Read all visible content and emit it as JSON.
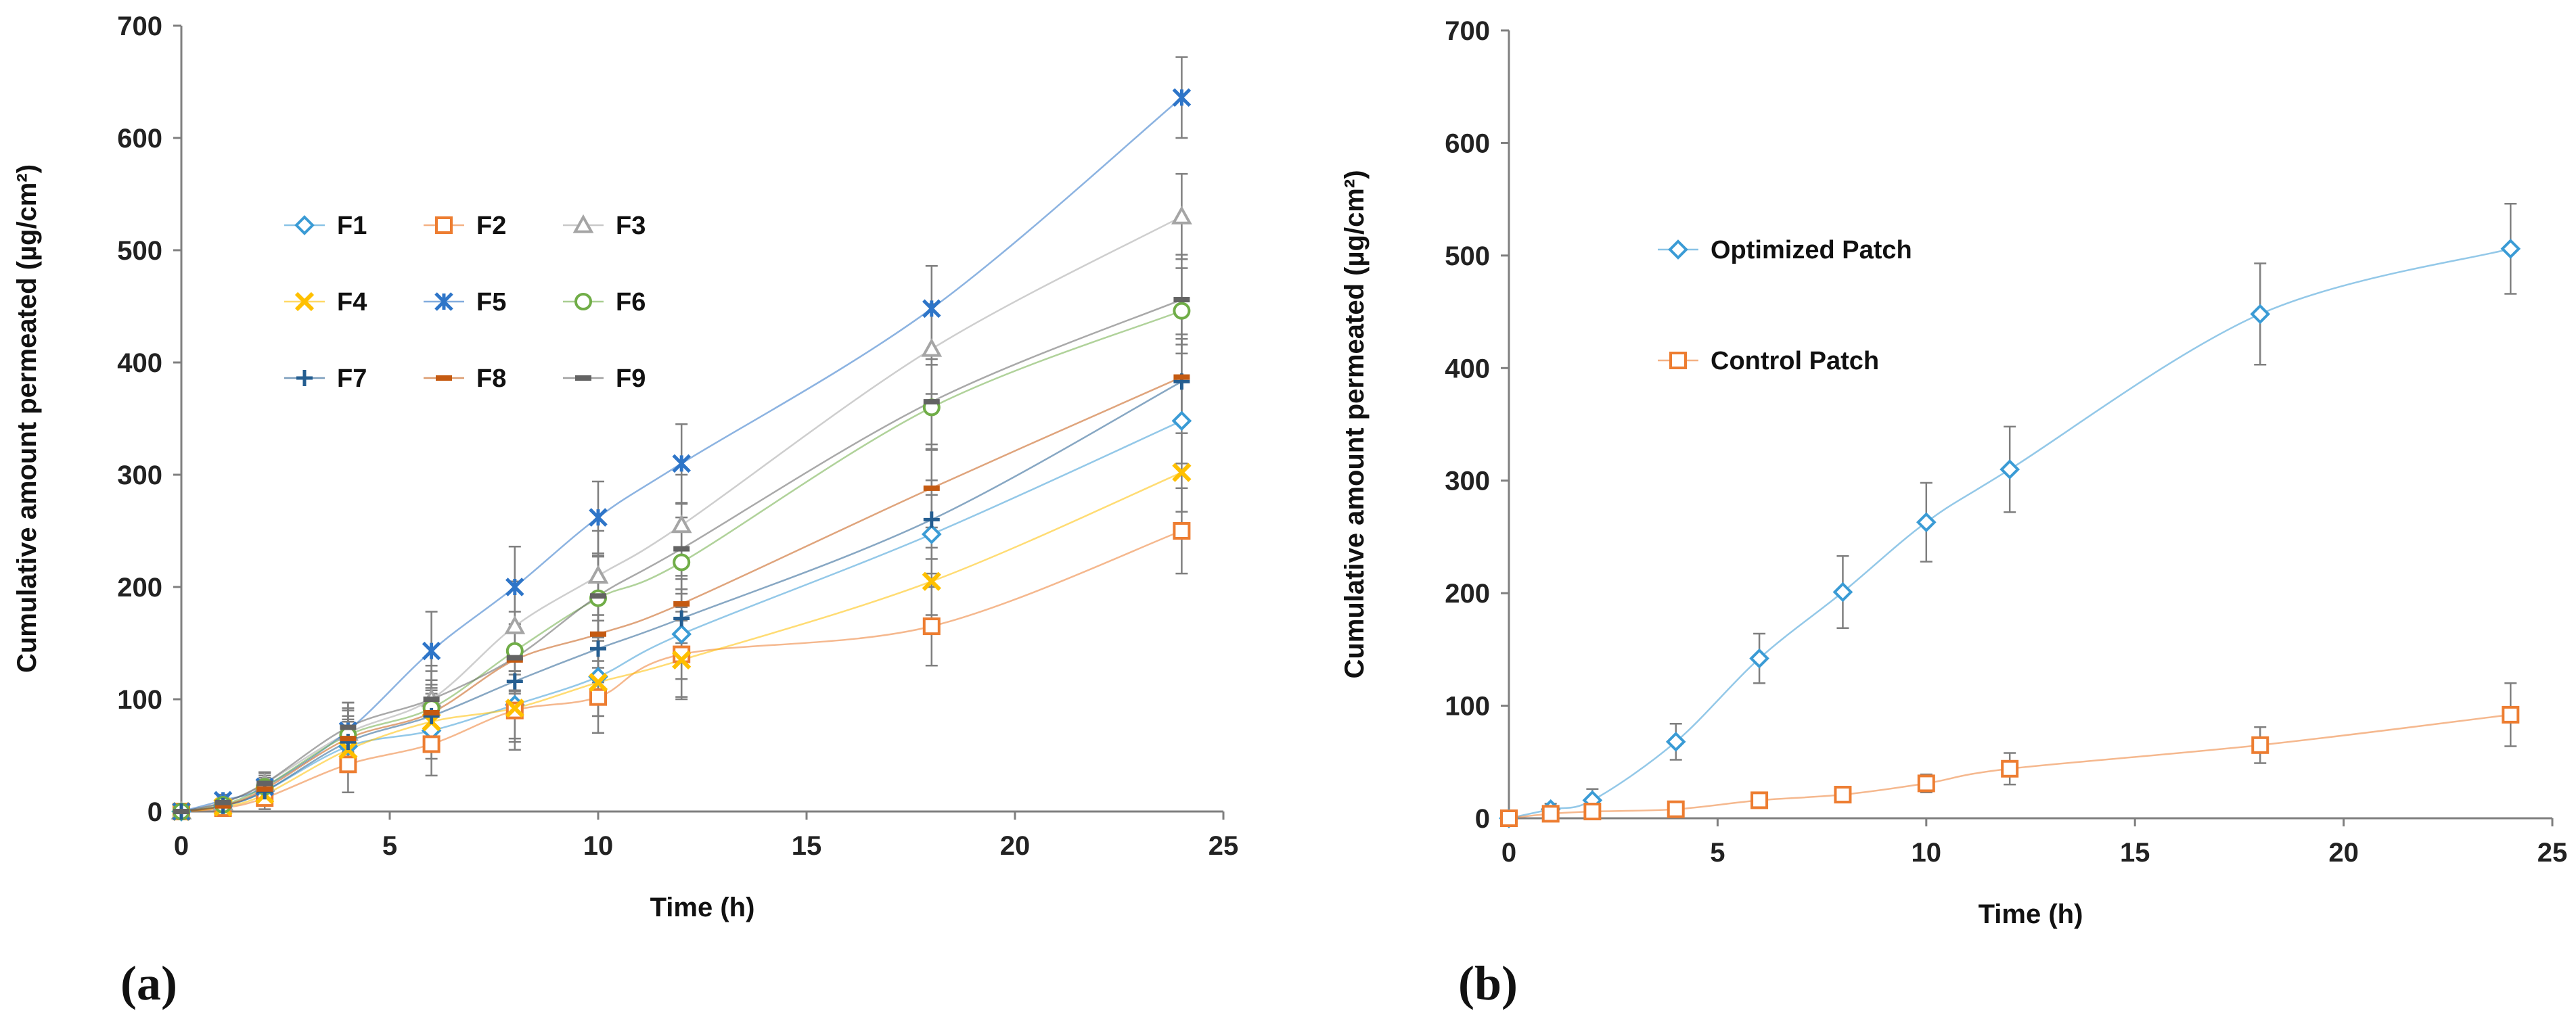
{
  "chart_data": [
    {
      "type": "line",
      "panel_label": "(a)",
      "xlabel": "Time (h)",
      "ylabel": "Cumulative amount permeated (µg/cm²)",
      "xlim": [
        0,
        25
      ],
      "ylim": [
        0,
        700
      ],
      "xticks": [
        0,
        5,
        10,
        15,
        20,
        25
      ],
      "yticks": [
        0,
        100,
        200,
        300,
        400,
        500,
        600,
        700
      ],
      "x": [
        0,
        1,
        2,
        4,
        6,
        8,
        10,
        12,
        18,
        24
      ],
      "series": [
        {
          "name": "F1",
          "color": "#3a9bd5",
          "marker": "diamond",
          "values": [
            0,
            5,
            18,
            58,
            72,
            95,
            120,
            158,
            247,
            348
          ],
          "errors": [
            0,
            5,
            10,
            22,
            25,
            30,
            35,
            40,
            35,
            38
          ]
        },
        {
          "name": "F2",
          "color": "#ed7d31",
          "marker": "square",
          "values": [
            0,
            3,
            12,
            42,
            60,
            90,
            102,
            140,
            165,
            250
          ],
          "errors": [
            0,
            5,
            10,
            25,
            28,
            35,
            32,
            38,
            35,
            38
          ]
        },
        {
          "name": "F3",
          "color": "#a5a5a5",
          "marker": "triangle",
          "values": [
            0,
            8,
            25,
            70,
            100,
            165,
            210,
            255,
            412,
            530
          ],
          "errors": [
            0,
            5,
            10,
            22,
            30,
            40,
            40,
            45,
            40,
            38
          ]
        },
        {
          "name": "F4",
          "color": "#ffc000",
          "marker": "x",
          "values": [
            0,
            4,
            15,
            55,
            80,
            92,
            115,
            135,
            205,
            302
          ],
          "errors": [
            0,
            5,
            10,
            20,
            25,
            30,
            30,
            35,
            30,
            35
          ]
        },
        {
          "name": "F5",
          "color": "#2e75c8",
          "marker": "star",
          "values": [
            0,
            10,
            22,
            72,
            143,
            200,
            262,
            310,
            448,
            636
          ],
          "errors": [
            0,
            5,
            12,
            25,
            35,
            36,
            32,
            35,
            38,
            36
          ]
        },
        {
          "name": "F6",
          "color": "#70ad47",
          "marker": "circle",
          "values": [
            0,
            6,
            22,
            68,
            92,
            143,
            190,
            222,
            360,
            446
          ],
          "errors": [
            0,
            5,
            10,
            22,
            25,
            35,
            38,
            40,
            38,
            38
          ]
        },
        {
          "name": "F7",
          "color": "#255e91",
          "marker": "plus",
          "values": [
            0,
            5,
            18,
            62,
            85,
            116,
            145,
            172,
            260,
            383
          ],
          "errors": [
            0,
            5,
            10,
            20,
            25,
            30,
            30,
            35,
            35,
            38
          ]
        },
        {
          "name": "F8",
          "color": "#c55a11",
          "marker": "dash",
          "values": [
            0,
            5,
            20,
            65,
            88,
            135,
            158,
            185,
            288,
            387
          ],
          "errors": [
            0,
            5,
            10,
            20,
            25,
            30,
            30,
            35,
            35,
            38
          ]
        },
        {
          "name": "F9",
          "color": "#636363",
          "marker": "dash",
          "values": [
            0,
            8,
            25,
            75,
            100,
            137,
            192,
            234,
            365,
            456
          ],
          "errors": [
            0,
            5,
            10,
            22,
            25,
            30,
            35,
            40,
            38,
            40
          ]
        }
      ],
      "legend": "upper-left, 3 columns"
    },
    {
      "type": "line",
      "panel_label": "(b)",
      "xlabel": "Time (h)",
      "ylabel": "Cumulative amount permeated (µg/cm²)",
      "xlim": [
        0,
        25
      ],
      "ylim": [
        0,
        700
      ],
      "xticks": [
        0,
        5,
        10,
        15,
        20,
        25
      ],
      "yticks": [
        0,
        100,
        200,
        300,
        400,
        500,
        600,
        700
      ],
      "x": [
        0,
        1,
        2,
        4,
        6,
        8,
        10,
        12,
        18,
        24
      ],
      "series": [
        {
          "name": "Optimized Patch",
          "color": "#3a9bd5",
          "marker": "diamond",
          "values": [
            0,
            8,
            16,
            68,
            142,
            201,
            263,
            310,
            448,
            506
          ],
          "errors": [
            0,
            5,
            10,
            16,
            22,
            32,
            35,
            38,
            45,
            40
          ]
        },
        {
          "name": "Control Patch",
          "color": "#ed7d31",
          "marker": "square",
          "values": [
            0,
            4,
            6,
            8,
            16,
            21,
            31,
            44,
            65,
            92
          ],
          "errors": [
            0,
            3,
            4,
            5,
            6,
            6,
            8,
            14,
            16,
            28
          ]
        }
      ],
      "legend": "upper-left, 1 column"
    }
  ]
}
